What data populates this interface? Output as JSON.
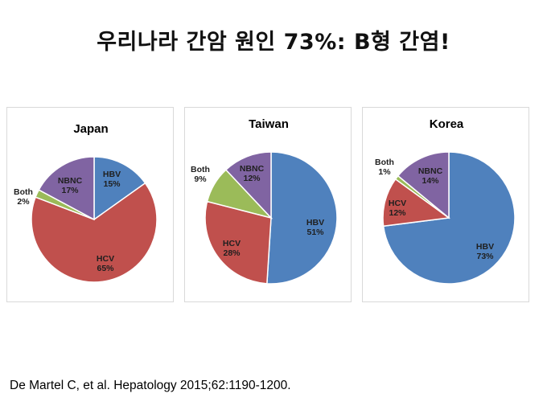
{
  "slide": {
    "title": "우리나라 간암 원인 73%: B형 간염!",
    "citation": "De Martel C, et al. Hepatology 2015;62:1190-1200."
  },
  "colors": {
    "HBV": "#4f81bd",
    "HCV": "#c0504d",
    "Both": "#9bbb59",
    "NBNC": "#8064a2"
  },
  "chart_data": [
    {
      "type": "pie",
      "title": "Japan",
      "slices": [
        {
          "name": "HBV",
          "label": "HBV",
          "pct_label": "15%",
          "value": 15
        },
        {
          "name": "HCV",
          "label": "HCV",
          "pct_label": "65%",
          "value": 65
        },
        {
          "name": "Both",
          "label": "Both",
          "pct_label": "2%",
          "value": 2
        },
        {
          "name": "NBNC",
          "label": "NBNC",
          "pct_label": "17%",
          "value": 17
        }
      ]
    },
    {
      "type": "pie",
      "title": "Taiwan",
      "slices": [
        {
          "name": "HBV",
          "label": "HBV",
          "pct_label": "51%",
          "value": 51
        },
        {
          "name": "HCV",
          "label": "HCV",
          "pct_label": "28%",
          "value": 28
        },
        {
          "name": "Both",
          "label": "Both",
          "pct_label": "9%",
          "value": 9
        },
        {
          "name": "NBNC",
          "label": "NBNC",
          "pct_label": "12%",
          "value": 12
        }
      ]
    },
    {
      "type": "pie",
      "title": "Korea",
      "slices": [
        {
          "name": "HBV",
          "label": "HBV",
          "pct_label": "73%",
          "value": 73
        },
        {
          "name": "HCV",
          "label": "HCV",
          "pct_label": "12%",
          "value": 12
        },
        {
          "name": "Both",
          "label": "Both",
          "pct_label": "1%",
          "value": 1
        },
        {
          "name": "NBNC",
          "label": "NBNC",
          "pct_label": "14%",
          "value": 14
        }
      ]
    }
  ]
}
